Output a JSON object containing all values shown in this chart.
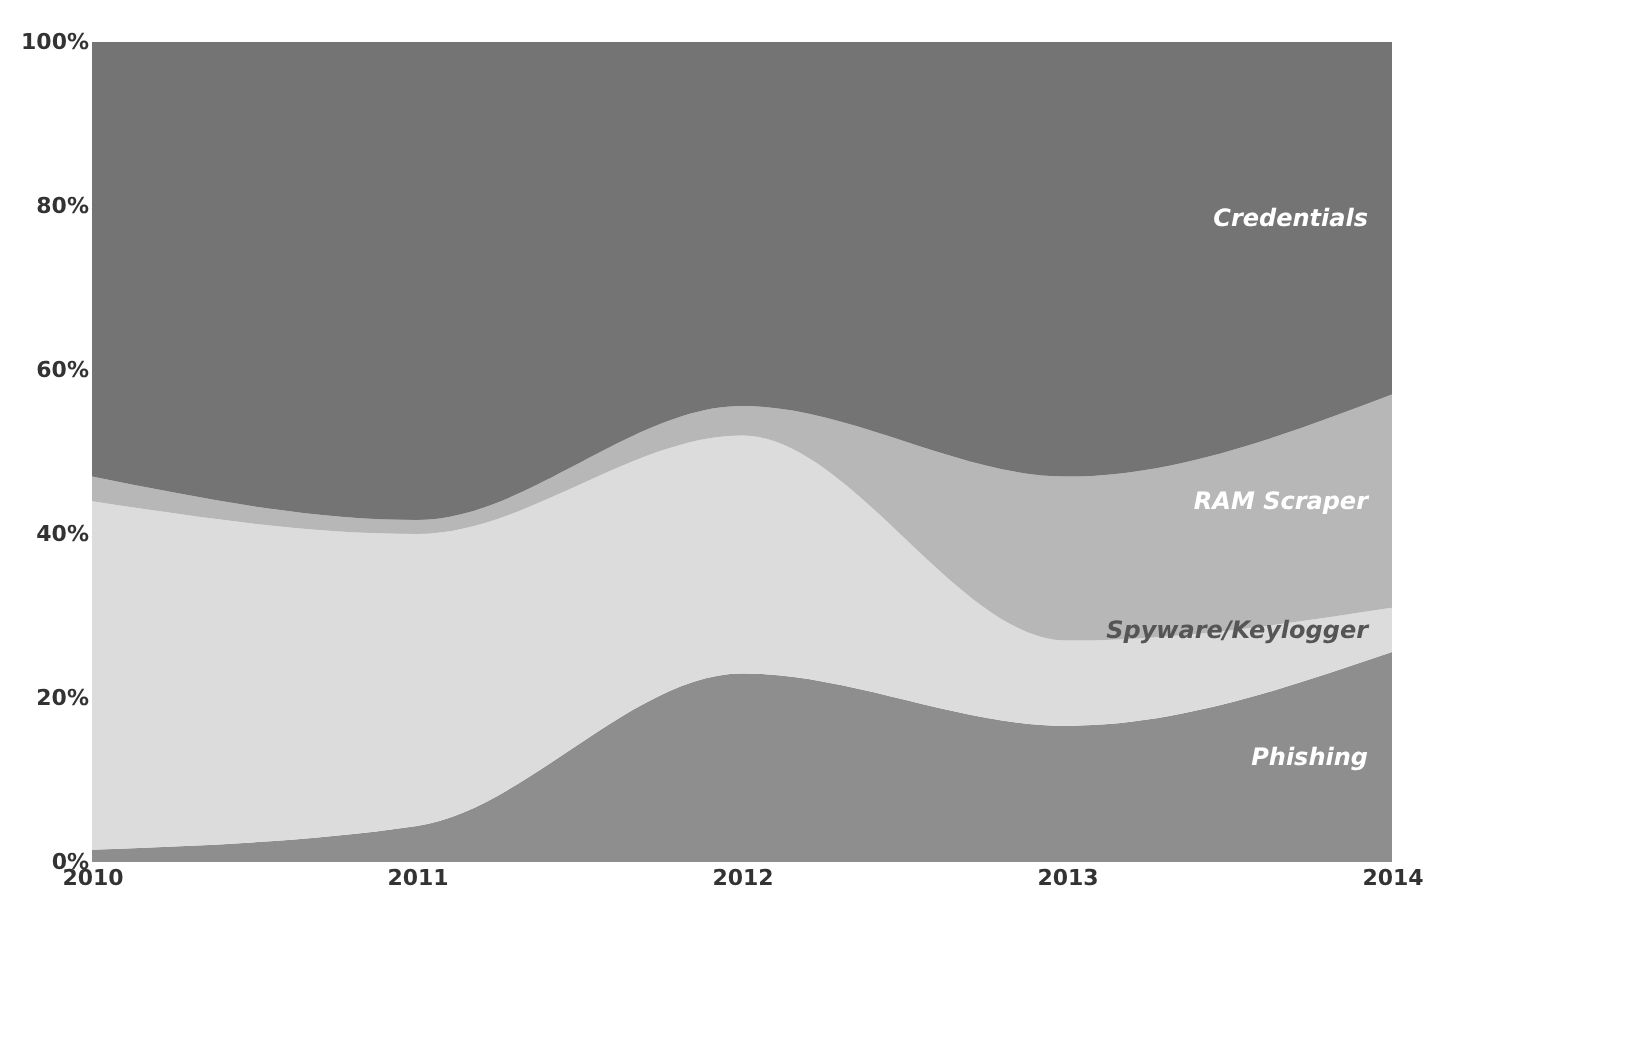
{
  "chart_data": {
    "type": "area",
    "stacked": true,
    "categories": [
      "2010",
      "2011",
      "2012",
      "2013",
      "2014"
    ],
    "series": [
      {
        "name": "Phishing",
        "color": "#8e8e8e",
        "values": [
          1.5,
          4.4,
          23,
          16.6,
          25.6
        ]
      },
      {
        "name": "Spyware/Keylogger",
        "color": "#dcdcdc",
        "values": [
          42.5,
          35.6,
          29,
          10.4,
          5.4
        ]
      },
      {
        "name": "RAM Scraper",
        "color": "#b7b7b7",
        "values": [
          3,
          1.7,
          3.6,
          20,
          26
        ]
      },
      {
        "name": "Credentials",
        "color": "#747474",
        "values": [
          53,
          58.3,
          44.4,
          53,
          43
        ]
      }
    ],
    "ylim": [
      0,
      100
    ],
    "yticks": [
      {
        "value": 0,
        "label": "0%"
      },
      {
        "value": 20,
        "label": "20%"
      },
      {
        "value": 40,
        "label": "40%"
      },
      {
        "value": 60,
        "label": "60%"
      },
      {
        "value": 80,
        "label": "80%"
      },
      {
        "value": 100,
        "label": "100%"
      }
    ],
    "grid": false,
    "legend": false
  }
}
